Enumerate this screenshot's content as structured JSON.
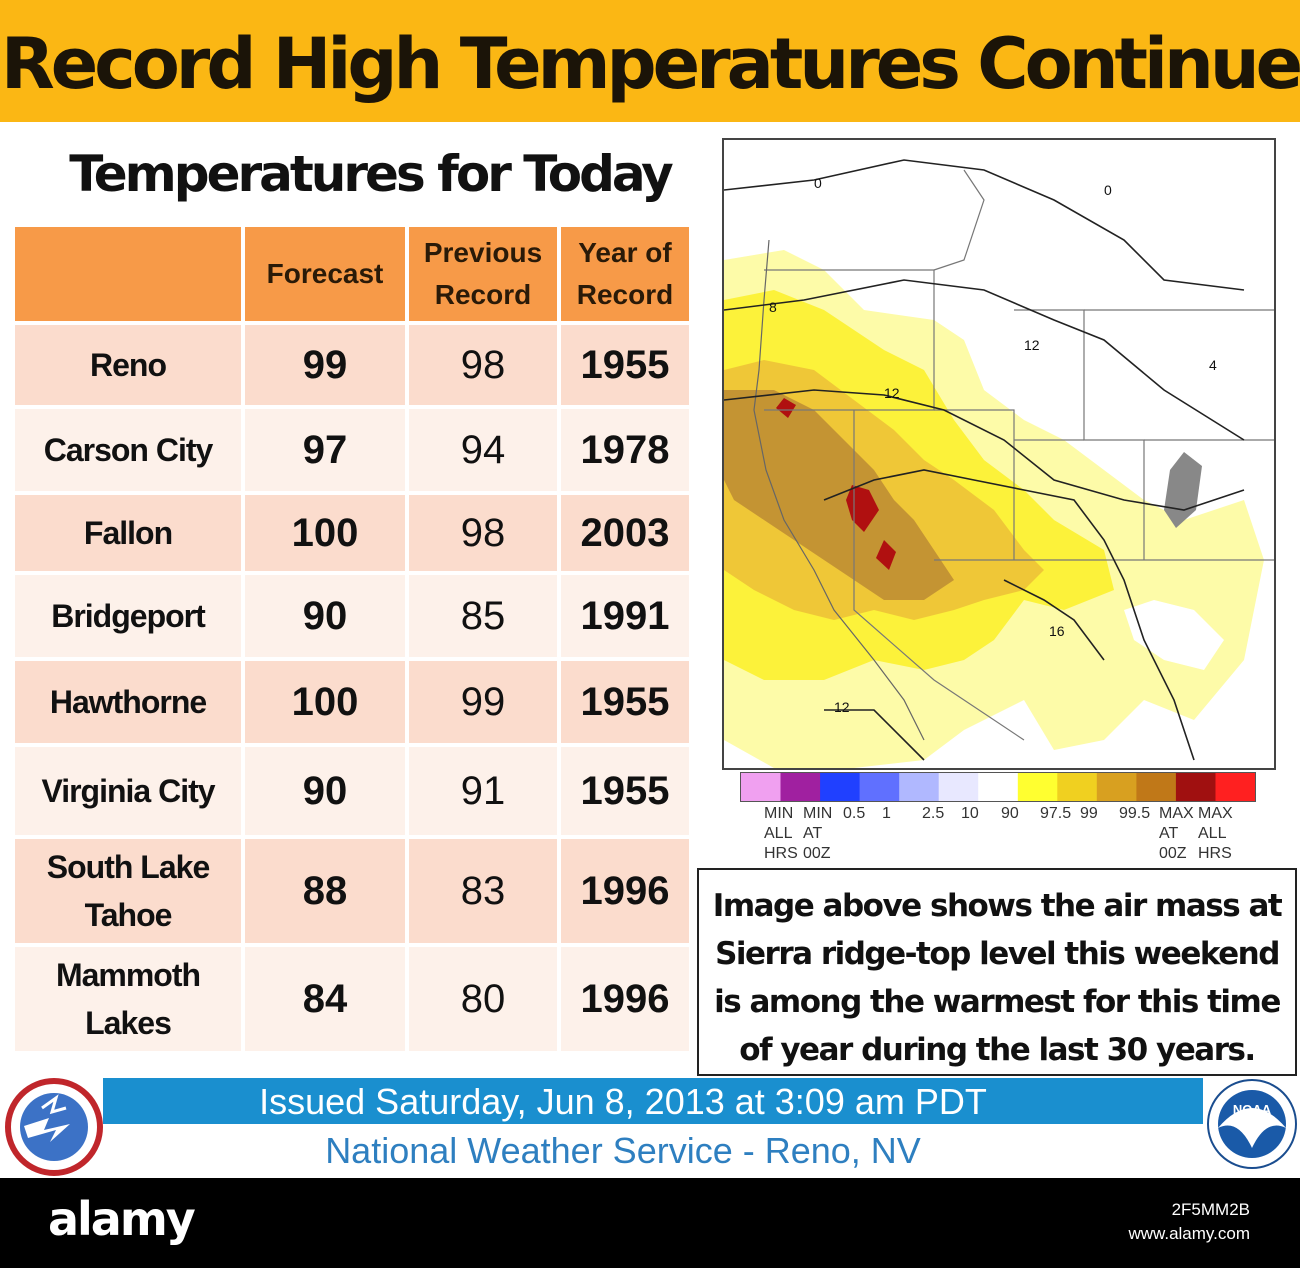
{
  "banner": {
    "title": "Record High Temperatures Continue",
    "bg_color": "#fbb714"
  },
  "table": {
    "title": "Temperatures for Today",
    "headers": [
      "",
      "Forecast",
      "Previous Record",
      "Year of Record"
    ],
    "header_color": "#f79a48",
    "rows": [
      {
        "city": "Reno",
        "forecast": "99",
        "previous": "98",
        "year": "1955"
      },
      {
        "city": "Carson City",
        "forecast": "97",
        "previous": "94",
        "year": "1978"
      },
      {
        "city": "Fallon",
        "forecast": "100",
        "previous": "98",
        "year": "2003"
      },
      {
        "city": "Bridgeport",
        "forecast": "90",
        "previous": "85",
        "year": "1991"
      },
      {
        "city": "Hawthorne",
        "forecast": "100",
        "previous": "99",
        "year": "1955"
      },
      {
        "city": "Virginia City",
        "forecast": "90",
        "previous": "91",
        "year": "1955"
      },
      {
        "city": "South Lake Tahoe",
        "forecast": "88",
        "previous": "83",
        "year": "1996"
      },
      {
        "city": "Mammoth Lakes",
        "forecast": "84",
        "previous": "80",
        "year": "1996"
      }
    ]
  },
  "map": {
    "contour_labels": [
      "0",
      "0",
      "8",
      "12",
      "12",
      "4",
      "16",
      "12"
    ]
  },
  "legend": {
    "colors": [
      "#f0a0f0",
      "#a020a0",
      "#2040ff",
      "#6070ff",
      "#b0b8ff",
      "#e8e8ff",
      "#ffffff",
      "#ffff30",
      "#f0d020",
      "#d8a020",
      "#c07818",
      "#a01010",
      "#ff2020"
    ],
    "labels": [
      "MIN\nALL\nHRS",
      "MIN\nAT\n00Z",
      "0.5",
      "1",
      "2.5",
      "10",
      "90",
      "97.5",
      "99",
      "99.5",
      "MAX\nAT\n00Z",
      "MAX\nALL\nHRS"
    ]
  },
  "caption": "Image above shows the air mass at Sierra ridge-top level this weekend is among the warmest for this time of year during the last 30 years.",
  "footer": {
    "issued": "Issued Saturday, Jun 8, 2013 at 3:09 am PDT",
    "office": "National Weather Service - Reno, NV",
    "bar_color": "#1a8fcf"
  },
  "logos": {
    "left_text": "NATIONAL WEATHER SERVICE",
    "right_text": "NOAA"
  },
  "watermark": {
    "brand": "alamy",
    "image_id": "2F5MM2B",
    "site": "www.alamy.com"
  }
}
